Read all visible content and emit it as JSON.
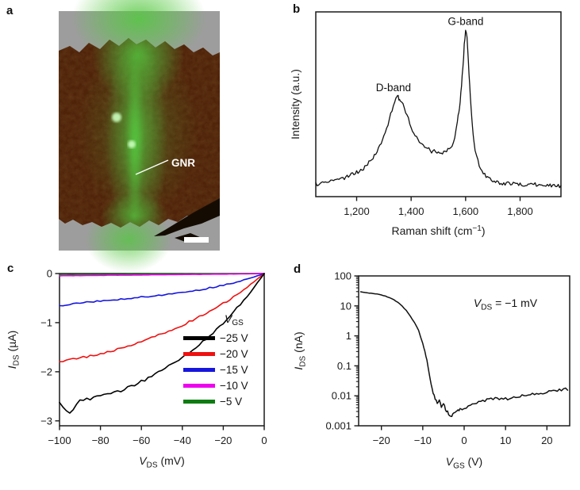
{
  "figure_type": "scientific-figure-4-panels",
  "panels": {
    "a": {
      "label": "a",
      "image_annotation": "GNR",
      "description": "Fluorescence/AFM overlay image of a graphene nanoribbon (GNR) on a flake with scale bar",
      "colors": {
        "background": "#9d9d9d",
        "flake": "#4f2309",
        "glow": "#55c840",
        "bright_spot": "#ccffc0",
        "dark_flake": "#140c03",
        "scale_bar": "#ffffff",
        "annotation_text": "#ffffff"
      }
    },
    "b": {
      "label": "b"
    },
    "c": {
      "label": "c",
      "legend": {
        "header_parts": [
          {
            "t": "V",
            "style": "italic"
          },
          {
            "t": "GS",
            "style": "sub"
          }
        ],
        "items": [
          {
            "label": "−25 V",
            "color": "#000000"
          },
          {
            "label": "−20 V",
            "color": "#ee1111"
          },
          {
            "label": "−15 V",
            "color": "#1616dd"
          },
          {
            "label": "−10 V",
            "color": "#ee00ee"
          },
          {
            "label": "−5 V",
            "color": "#0e7c12"
          }
        ]
      }
    },
    "d": {
      "label": "d",
      "annotation_parts": [
        {
          "t": "V",
          "style": "italic"
        },
        {
          "t": "DS",
          "style": "sub"
        },
        {
          "t": " = −1 mV",
          "style": "normal"
        }
      ]
    }
  },
  "chart_data": [
    {
      "id": "raman_spectrum",
      "panel": "b",
      "type": "line",
      "xlabel_parts": [
        {
          "t": "Raman shift (cm",
          "style": "normal"
        },
        {
          "t": "−1",
          "style": "sup"
        },
        {
          "t": ")",
          "style": "normal"
        }
      ],
      "ylabel_parts": [
        {
          "t": "Intensity (a.u.)",
          "style": "normal"
        }
      ],
      "xlim": [
        1050,
        1950
      ],
      "ylim": [
        0,
        1
      ],
      "xticks": [
        1200,
        1400,
        1600,
        1800
      ],
      "xtick_labels": [
        "1,200",
        "1,400",
        "1,600",
        "1,800"
      ],
      "grid": false,
      "legend_position": "none",
      "annotations": [
        {
          "text": "D-band",
          "x": 1335,
          "y": 0.57
        },
        {
          "text": "G-band",
          "x": 1600,
          "y": 0.93
        }
      ],
      "series": [
        {
          "name": "GNR Raman spectrum",
          "color": "#111111",
          "x": [
            1050,
            1060,
            1070,
            1080,
            1090,
            1100,
            1110,
            1120,
            1130,
            1140,
            1150,
            1160,
            1170,
            1180,
            1190,
            1200,
            1210,
            1220,
            1230,
            1240,
            1250,
            1260,
            1270,
            1280,
            1290,
            1300,
            1310,
            1320,
            1330,
            1340,
            1345,
            1350,
            1355,
            1360,
            1370,
            1380,
            1390,
            1400,
            1410,
            1420,
            1430,
            1440,
            1450,
            1460,
            1470,
            1480,
            1490,
            1500,
            1510,
            1520,
            1530,
            1540,
            1550,
            1560,
            1570,
            1575,
            1580,
            1585,
            1590,
            1595,
            1600,
            1605,
            1610,
            1615,
            1620,
            1625,
            1630,
            1640,
            1650,
            1660,
            1670,
            1680,
            1690,
            1700,
            1710,
            1720,
            1730,
            1740,
            1750,
            1760,
            1770,
            1780,
            1790,
            1800,
            1810,
            1820,
            1830,
            1840,
            1850,
            1860,
            1870,
            1880,
            1890,
            1900,
            1910,
            1920,
            1930,
            1940,
            1950
          ],
          "y": [
            0.07,
            0.068,
            0.072,
            0.075,
            0.073,
            0.08,
            0.082,
            0.085,
            0.09,
            0.092,
            0.1,
            0.105,
            0.11,
            0.12,
            0.125,
            0.135,
            0.14,
            0.15,
            0.16,
            0.175,
            0.19,
            0.21,
            0.23,
            0.26,
            0.29,
            0.33,
            0.37,
            0.42,
            0.47,
            0.52,
            0.54,
            0.545,
            0.53,
            0.52,
            0.5,
            0.46,
            0.42,
            0.38,
            0.345,
            0.32,
            0.3,
            0.285,
            0.27,
            0.26,
            0.25,
            0.245,
            0.24,
            0.243,
            0.24,
            0.245,
            0.25,
            0.26,
            0.28,
            0.32,
            0.4,
            0.46,
            0.52,
            0.6,
            0.7,
            0.82,
            0.9,
            0.86,
            0.74,
            0.6,
            0.48,
            0.38,
            0.3,
            0.22,
            0.17,
            0.14,
            0.12,
            0.105,
            0.095,
            0.088,
            0.082,
            0.078,
            0.075,
            0.072,
            0.07,
            0.07,
            0.068,
            0.068,
            0.066,
            0.066,
            0.065,
            0.066,
            0.064,
            0.065,
            0.063,
            0.064,
            0.062,
            0.063,
            0.062,
            0.062,
            0.061,
            0.062,
            0.06,
            0.061,
            0.06
          ]
        }
      ]
    },
    {
      "id": "output_curves",
      "panel": "c",
      "type": "line",
      "xlabel_parts": [
        {
          "t": "V",
          "style": "italic"
        },
        {
          "t": "DS",
          "style": "sub"
        },
        {
          "t": " (mV)",
          "style": "normal"
        }
      ],
      "ylabel_parts": [
        {
          "t": "I",
          "style": "italic"
        },
        {
          "t": "DS",
          "style": "sub"
        },
        {
          "t": " (µA)",
          "style": "normal"
        }
      ],
      "xlim": [
        -100,
        0
      ],
      "ylim": [
        -3.1,
        0
      ],
      "xticks": [
        -100,
        -80,
        -60,
        -40,
        -20,
        0
      ],
      "xtick_labels": [
        "−100",
        "−80",
        "−60",
        "−40",
        "−20",
        "0"
      ],
      "yticks": [
        0,
        -1,
        -2,
        -3
      ],
      "ytick_labels": [
        "0",
        "−1",
        "−2",
        "−3"
      ],
      "grid": false,
      "legend_position": "right-middle",
      "x": [
        0,
        -5,
        -10,
        -15,
        -20,
        -25,
        -30,
        -35,
        -40,
        -45,
        -50,
        -55,
        -60,
        -65,
        -70,
        -75,
        -80,
        -85,
        -90,
        -95,
        -100
      ],
      "series": [
        {
          "name": "VGS = −25 V",
          "color": "#000000",
          "y": [
            0,
            -0.28,
            -0.55,
            -0.78,
            -1.0,
            -1.2,
            -1.38,
            -1.55,
            -1.7,
            -1.84,
            -1.97,
            -2.09,
            -2.2,
            -2.3,
            -2.38,
            -2.45,
            -2.5,
            -2.55,
            -2.58,
            -2.85,
            -2.65
          ]
        },
        {
          "name": "VGS = −20 V",
          "color": "#ee1111",
          "y": [
            0,
            -0.17,
            -0.33,
            -0.48,
            -0.61,
            -0.73,
            -0.84,
            -0.95,
            -1.05,
            -1.14,
            -1.23,
            -1.31,
            -1.39,
            -1.46,
            -1.52,
            -1.58,
            -1.63,
            -1.68,
            -1.72,
            -1.76,
            -1.8
          ]
        },
        {
          "name": "VGS = −15 V",
          "color": "#1616dd",
          "y": [
            0,
            -0.07,
            -0.13,
            -0.19,
            -0.24,
            -0.28,
            -0.32,
            -0.35,
            -0.38,
            -0.41,
            -0.44,
            -0.46,
            -0.48,
            -0.5,
            -0.52,
            -0.54,
            -0.56,
            -0.58,
            -0.6,
            -0.63,
            -0.65
          ]
        },
        {
          "name": "VGS = −10 V",
          "color": "#ee00ee",
          "y": [
            0,
            -0.004,
            -0.007,
            -0.01,
            -0.012,
            -0.015,
            -0.017,
            -0.019,
            -0.021,
            -0.023,
            -0.025,
            -0.027,
            -0.029,
            -0.031,
            -0.033,
            -0.035,
            -0.037,
            -0.039,
            -0.041,
            -0.043,
            -0.046
          ]
        },
        {
          "name": "VGS = −5 V",
          "color": "#0e7c12",
          "y": [
            0,
            -0.001,
            -0.002,
            -0.003,
            -0.004,
            -0.005,
            -0.006,
            -0.007,
            -0.008,
            -0.009,
            -0.01,
            -0.011,
            -0.012,
            -0.013,
            -0.014,
            -0.015,
            -0.016,
            -0.017,
            -0.018,
            -0.019,
            -0.02
          ]
        }
      ]
    },
    {
      "id": "transfer_curve",
      "panel": "d",
      "type": "line",
      "yscale": "log",
      "xlabel_parts": [
        {
          "t": "V",
          "style": "italic"
        },
        {
          "t": "GS",
          "style": "sub"
        },
        {
          "t": " (V)",
          "style": "normal"
        }
      ],
      "ylabel_parts": [
        {
          "t": "I",
          "style": "italic"
        },
        {
          "t": "DS",
          "style": "sub"
        },
        {
          "t": " (nA)",
          "style": "normal"
        }
      ],
      "xlim": [
        -25.5,
        25.5
      ],
      "ylim": [
        0.001,
        100
      ],
      "xticks": [
        -20,
        -10,
        0,
        10,
        20
      ],
      "xtick_labels": [
        "−20",
        "−10",
        "0",
        "10",
        "20"
      ],
      "yticks": [
        100,
        10,
        1,
        0.1,
        0.01,
        0.001
      ],
      "ytick_labels": [
        "100",
        "10",
        "1",
        "0.1",
        "0.01",
        "0.001"
      ],
      "grid": false,
      "legend_position": "none",
      "series": [
        {
          "name": "IDS vs VGS at VDS = −1 mV",
          "color": "#111111",
          "x": [
            -25,
            -24,
            -23,
            -22,
            -21,
            -20,
            -19,
            -18,
            -17,
            -16,
            -15,
            -14,
            -13,
            -12,
            -11,
            -10,
            -9.5,
            -9,
            -8.5,
            -8,
            -7.5,
            -7,
            -6.5,
            -6,
            -5.5,
            -5,
            -4.5,
            -4,
            -3.5,
            -3,
            -2.5,
            -2,
            -1.5,
            -1,
            -0.5,
            0,
            1,
            2,
            3,
            4,
            5,
            6,
            7,
            8,
            9,
            10,
            11,
            12,
            13,
            14,
            15,
            16,
            17,
            18,
            19,
            20,
            21,
            22,
            23,
            24,
            25
          ],
          "y": [
            30,
            28,
            27,
            26,
            25,
            23,
            21,
            19,
            16,
            13,
            10,
            7,
            4.5,
            2.8,
            1.5,
            0.55,
            0.3,
            0.15,
            0.06,
            0.025,
            0.012,
            0.008,
            0.006,
            0.0075,
            0.0045,
            0.006,
            0.0035,
            0.003,
            0.0022,
            0.002,
            0.0026,
            0.003,
            0.0032,
            0.0035,
            0.0036,
            0.0038,
            0.0045,
            0.0052,
            0.006,
            0.0062,
            0.007,
            0.0075,
            0.008,
            0.0078,
            0.0076,
            0.008,
            0.008,
            0.009,
            0.0092,
            0.0098,
            0.0102,
            0.0108,
            0.0112,
            0.0118,
            0.0122,
            0.013,
            0.014,
            0.0155,
            0.0152,
            0.016,
            0.017
          ]
        }
      ]
    }
  ]
}
